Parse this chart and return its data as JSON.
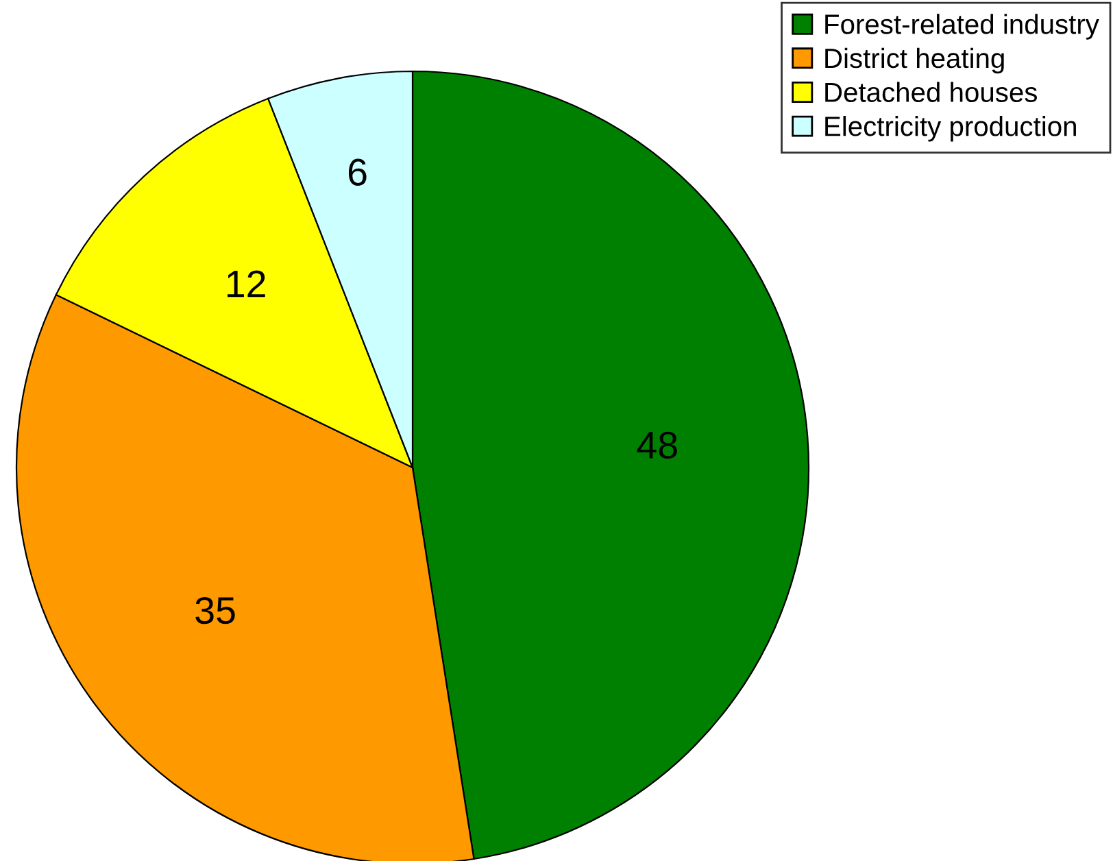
{
  "chart_data": {
    "type": "pie",
    "categories": [
      "Forest-related industry",
      "District heating",
      "Detached houses",
      "Electricity production"
    ],
    "values": [
      48,
      35,
      12,
      6
    ],
    "colors": [
      "#008000",
      "#ff9900",
      "#ffff00",
      "#ccffff"
    ],
    "data_labels": true,
    "legend": "top right"
  }
}
